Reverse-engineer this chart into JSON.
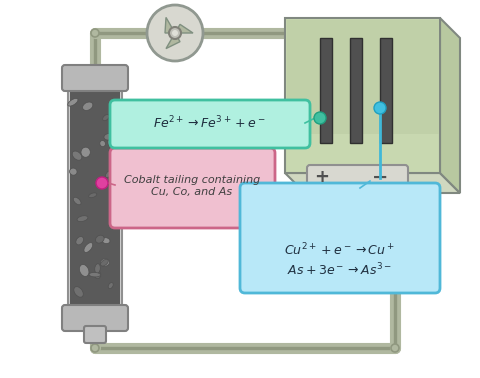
{
  "bg_color": "#ffffff",
  "pipe_color": "#b0b8a0",
  "pipe_lw": 8,
  "pipe_edge_color": "#909880",
  "column_body_color": "#c8c8c8",
  "column_edge_color": "#909090",
  "column_fill_color": "#7a7a7a",
  "tank_body_color": "#c8c8c8",
  "tank_fill_color": "#c8d4b0",
  "tank_edge_color": "#808080",
  "electrode_color": "#606060",
  "connector_color": "#b0b8a0",
  "pink_box_color": "#f0c0d0",
  "pink_box_edge": "#cc6688",
  "pink_text": "Cobalt tailing containing\nCu, Co, and As",
  "cyan_box_color": "#b8e8f8",
  "cyan_box_edge": "#50b8d8",
  "cyan_text_line1": "$Cu^{2+} + e^- \\rightarrow Cu^+$",
  "cyan_text_line2": "$As + 3e^- \\rightarrow As^{3-}$",
  "green_box_color": "#b0f0e0",
  "green_box_edge": "#40c0a0",
  "green_text": "$Fe^{2+} \\rightarrow Fe^{3+} + e^-$",
  "dot_pink": "#e040a0",
  "dot_cyan": "#40c0e0",
  "dot_green": "#40c0a0",
  "plus_label": "+",
  "minus_label": "−"
}
